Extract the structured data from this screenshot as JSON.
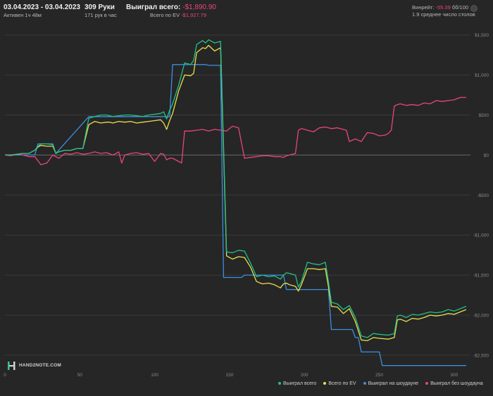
{
  "header": {
    "date_range": "03.04.2023 - 03.04.2023",
    "active_time": "Активен 1ч 48м",
    "hands": "309 Руки",
    "hands_per_hour": "171 рук в час",
    "total_won_label": "Выиграл всего:",
    "total_won_value": "-$1,890.90",
    "ev_label": "Всего по EV",
    "ev_value": "-$1,927.79",
    "winrate_label": "Винрейт:",
    "winrate_value": "-55.39",
    "winrate_unit": "бб/100",
    "avg_tables": "1.9 среднее число столов"
  },
  "logo_text": "HAND2NOTE.COM",
  "legend": [
    {
      "label": "Выиграл всего",
      "color": "#21c08b"
    },
    {
      "label": "Всего по EV",
      "color": "#e8e04a"
    },
    {
      "label": "Выиграл на шоудауне",
      "color": "#3b8fe0"
    },
    {
      "label": "Выиграл без шоудауна",
      "color": "#e8457a"
    }
  ],
  "chart_data": {
    "type": "line",
    "xlim": [
      0,
      309
    ],
    "ylim": [
      -2650,
      1550
    ],
    "x_ticks": [
      "0",
      "50",
      "100",
      "150",
      "200",
      "250",
      "300"
    ],
    "y_ticks": [
      {
        "value": 1500,
        "label": "$1,500"
      },
      {
        "value": 1000,
        "label": "$1,000"
      },
      {
        "value": 500,
        "label": "$500"
      },
      {
        "value": 0,
        "label": "$0"
      },
      {
        "value": -500,
        "label": "-$500"
      },
      {
        "value": -1000,
        "label": "-$1,000"
      },
      {
        "value": -1500,
        "label": "-$1,500"
      },
      {
        "value": -2000,
        "label": "-$2,000"
      },
      {
        "value": -2500,
        "label": "-$2,500"
      }
    ],
    "series": [
      {
        "name": "Выиграл всего",
        "color": "#21c08b",
        "x": [
          0,
          4,
          8,
          12,
          16,
          20,
          22,
          24,
          28,
          32,
          34,
          36,
          40,
          44,
          48,
          52,
          56,
          60,
          64,
          68,
          70,
          72,
          76,
          80,
          84,
          88,
          92,
          96,
          100,
          104,
          106,
          108,
          110,
          112,
          116,
          120,
          124,
          126,
          128,
          132,
          134,
          136,
          140,
          144,
          148,
          152,
          156,
          160,
          164,
          168,
          172,
          176,
          180,
          184,
          186,
          188,
          190,
          194,
          196,
          198,
          202,
          206,
          210,
          214,
          216,
          218,
          222,
          226,
          230,
          234,
          238,
          242,
          246,
          250,
          256,
          260,
          262,
          264,
          268,
          272,
          276,
          280,
          284,
          288,
          292,
          296,
          300,
          304,
          308
        ],
        "y": [
          0,
          0,
          10,
          20,
          20,
          60,
          110,
          140,
          140,
          130,
          20,
          40,
          60,
          60,
          80,
          80,
          460,
          480,
          500,
          500,
          490,
          480,
          490,
          500,
          500,
          490,
          480,
          500,
          510,
          520,
          540,
          450,
          560,
          640,
          870,
          1150,
          1130,
          1180,
          1380,
          1430,
          1400,
          1440,
          1400,
          1420,
          -1210,
          -1220,
          -1190,
          -1200,
          -1350,
          -1520,
          -1500,
          -1520,
          -1510,
          -1550,
          -1500,
          -1470,
          -1480,
          -1500,
          -1650,
          -1580,
          -1340,
          -1360,
          -1370,
          -1340,
          -1580,
          -1840,
          -1860,
          -1930,
          -1880,
          -2030,
          -2260,
          -2280,
          -2230,
          -2240,
          -2250,
          -2230,
          -2010,
          -2000,
          -2030,
          -1990,
          -2000,
          -1980,
          -1960,
          -1970,
          -1960,
          -1930,
          -1950,
          -1920,
          -1890
        ]
      },
      {
        "name": "Всего по EV",
        "color": "#e8e04a",
        "x": [
          0,
          4,
          8,
          12,
          16,
          20,
          22,
          24,
          28,
          32,
          34,
          36,
          40,
          44,
          48,
          52,
          56,
          60,
          64,
          68,
          70,
          72,
          76,
          80,
          84,
          88,
          92,
          96,
          100,
          104,
          106,
          108,
          110,
          112,
          116,
          120,
          124,
          126,
          128,
          132,
          134,
          136,
          140,
          144,
          148,
          152,
          156,
          160,
          164,
          168,
          172,
          176,
          180,
          184,
          186,
          188,
          190,
          194,
          196,
          198,
          202,
          206,
          210,
          214,
          216,
          218,
          222,
          226,
          230,
          234,
          238,
          242,
          246,
          250,
          256,
          260,
          262,
          264,
          268,
          272,
          276,
          280,
          284,
          288,
          292,
          296,
          300,
          304,
          308
        ],
        "y": [
          0,
          0,
          10,
          20,
          20,
          60,
          100,
          120,
          110,
          110,
          20,
          40,
          60,
          60,
          80,
          80,
          380,
          420,
          400,
          410,
          410,
          400,
          420,
          410,
          420,
          400,
          410,
          420,
          430,
          440,
          400,
          320,
          430,
          520,
          800,
          1000,
          990,
          1020,
          1280,
          1340,
          1330,
          1370,
          1300,
          1340,
          -1260,
          -1300,
          -1270,
          -1280,
          -1400,
          -1580,
          -1610,
          -1600,
          -1620,
          -1660,
          -1610,
          -1600,
          -1620,
          -1640,
          -1700,
          -1620,
          -1420,
          -1420,
          -1430,
          -1420,
          -1640,
          -1890,
          -1900,
          -1980,
          -1920,
          -2080,
          -2310,
          -2320,
          -2280,
          -2290,
          -2300,
          -2280,
          -2060,
          -2050,
          -2080,
          -2040,
          -2050,
          -2030,
          -2000,
          -2010,
          -2000,
          -1980,
          -1990,
          -1960,
          -1930
        ]
      },
      {
        "name": "Выиграл на шоудауне",
        "color": "#3b8fe0",
        "x": [
          0,
          20,
          22,
          32,
          34,
          56,
          110,
          112,
          134,
          136,
          144,
          146,
          158,
          160,
          186,
          188,
          198,
          200,
          216,
          218,
          232,
          234,
          236,
          238,
          250,
          252,
          308
        ],
        "y": [
          0,
          0,
          140,
          140,
          20,
          480,
          480,
          1130,
          1130,
          1120,
          1120,
          -1530,
          -1530,
          -1500,
          -1500,
          -1680,
          -1680,
          -1680,
          -1680,
          -2180,
          -2180,
          -2280,
          -2280,
          -2460,
          -2460,
          -2630,
          -2630
        ]
      },
      {
        "name": "Выиграл без шоудауна",
        "color": "#e8457a",
        "x": [
          0,
          4,
          8,
          12,
          16,
          20,
          24,
          28,
          32,
          36,
          40,
          44,
          48,
          52,
          56,
          60,
          64,
          68,
          72,
          76,
          78,
          80,
          84,
          88,
          92,
          96,
          100,
          104,
          106,
          108,
          110,
          112,
          116,
          118,
          120,
          124,
          128,
          132,
          136,
          140,
          144,
          148,
          150,
          152,
          156,
          160,
          164,
          168,
          172,
          176,
          180,
          184,
          186,
          188,
          190,
          194,
          196,
          198,
          202,
          206,
          210,
          214,
          218,
          222,
          226,
          228,
          230,
          234,
          238,
          242,
          246,
          250,
          254,
          256,
          258,
          260,
          262,
          264,
          268,
          272,
          276,
          280,
          284,
          288,
          292,
          296,
          300,
          304,
          308
        ],
        "y": [
          0,
          -10,
          10,
          0,
          -20,
          -20,
          -120,
          -100,
          0,
          -40,
          20,
          10,
          30,
          10,
          20,
          40,
          20,
          30,
          0,
          40,
          -100,
          0,
          20,
          30,
          10,
          20,
          -80,
          20,
          10,
          -60,
          -40,
          -40,
          -80,
          -100,
          300,
          300,
          310,
          320,
          300,
          320,
          310,
          300,
          330,
          360,
          340,
          -40,
          -30,
          -20,
          -10,
          -10,
          -20,
          -20,
          -30,
          -10,
          0,
          20,
          310,
          330,
          310,
          290,
          340,
          350,
          330,
          340,
          320,
          310,
          170,
          200,
          170,
          280,
          270,
          240,
          250,
          270,
          310,
          610,
          630,
          640,
          620,
          630,
          620,
          650,
          640,
          680,
          670,
          680,
          690,
          720,
          720
        ]
      }
    ]
  }
}
